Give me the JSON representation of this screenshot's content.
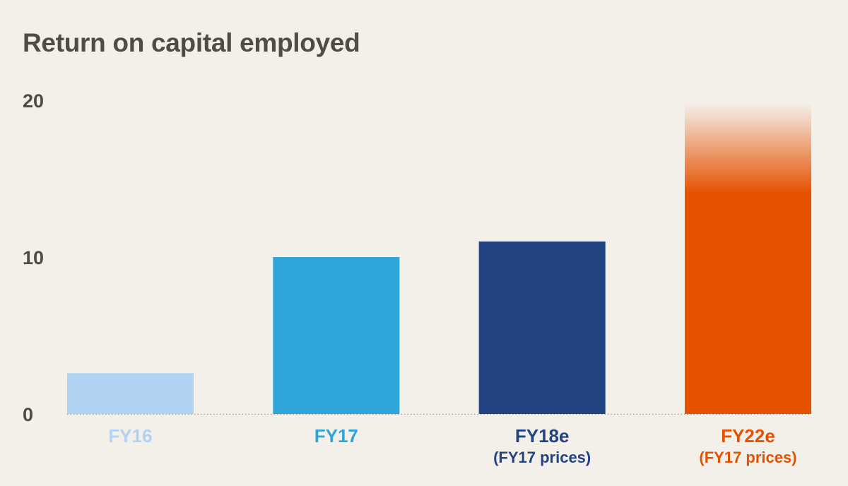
{
  "chart_data": {
    "type": "bar",
    "title": "Return on capital employed",
    "xlabel": "",
    "ylabel": "",
    "ylim": [
      0,
      20
    ],
    "yticks": [
      0,
      10,
      20
    ],
    "grid": false,
    "categories": [
      "FY16",
      "FY17",
      "FY18e",
      "FY22e"
    ],
    "category_sublabels": [
      "",
      "",
      "(FY17 prices)",
      "(FY17 prices)"
    ],
    "values": [
      2.6,
      10.0,
      11.0,
      19.8
    ],
    "colors": [
      "#b0d3f3",
      "#2fa4d9",
      "#224483",
      "#e65100"
    ],
    "faded_top": [
      false,
      false,
      false,
      true
    ]
  }
}
